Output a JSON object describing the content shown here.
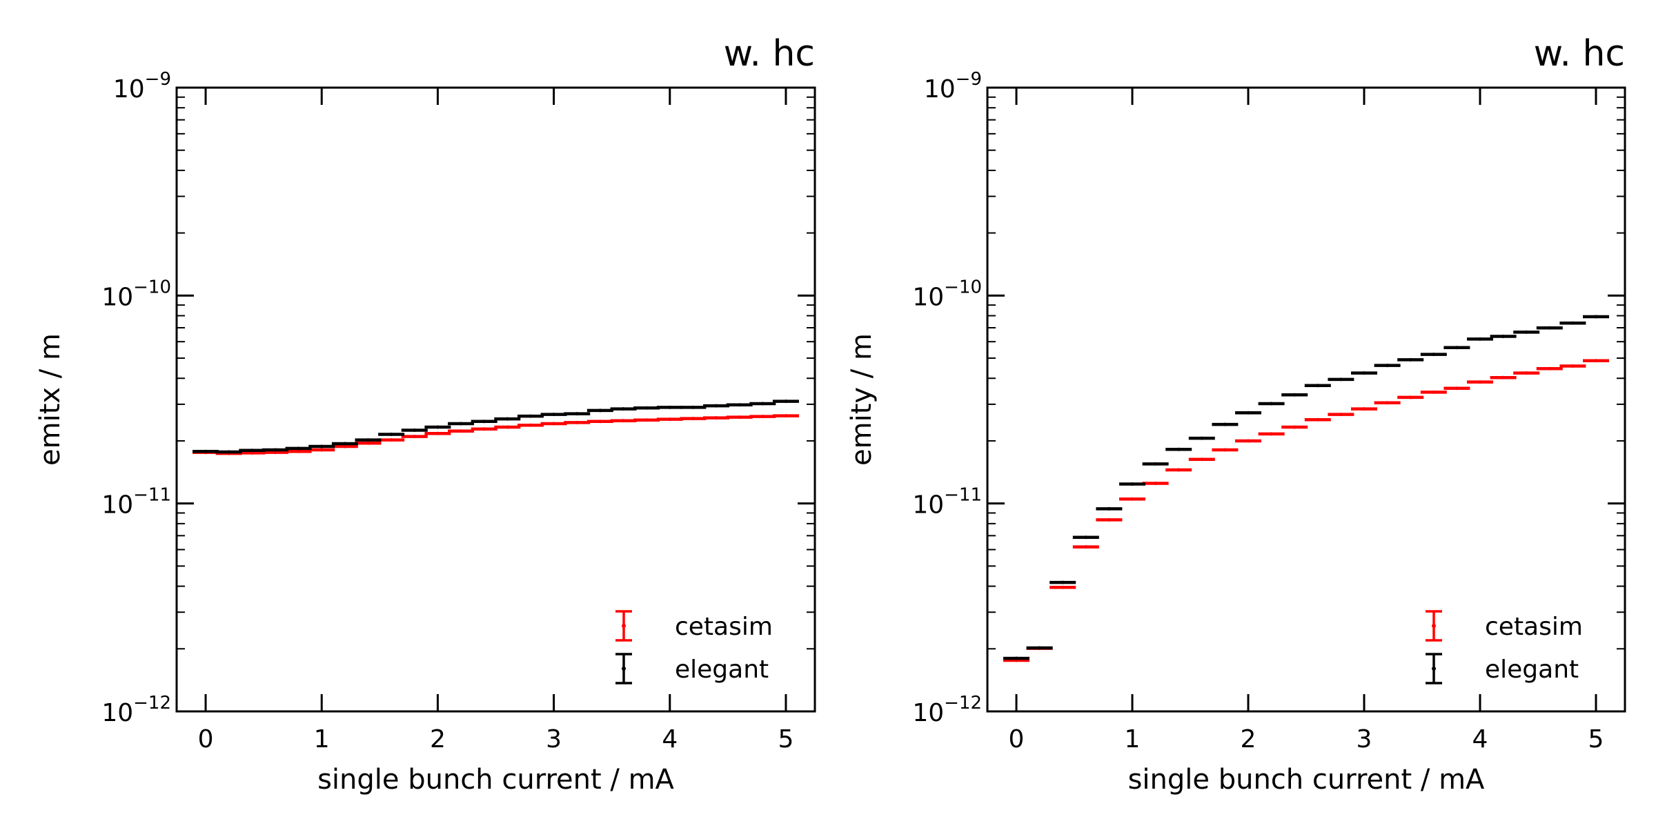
{
  "chart_data": [
    {
      "type": "scatter",
      "title": "w. hc",
      "xlabel": "single bunch current / mA",
      "ylabel": "emitx / m",
      "yscale": "log",
      "xlim": [
        -0.25,
        5.25
      ],
      "ylim": [
        1e-12,
        1e-09
      ],
      "xticks": [
        0,
        1,
        2,
        3,
        4,
        5
      ],
      "xtick_labels": [
        "0",
        "1",
        "2",
        "3",
        "4",
        "5"
      ],
      "yticks": [
        1e-12,
        1e-11,
        1e-10,
        1e-09
      ],
      "ytick_labels": [
        {
          "base": "10",
          "exp": "−12"
        },
        {
          "base": "10",
          "exp": "−11"
        },
        {
          "base": "10",
          "exp": "−10"
        },
        {
          "base": "10",
          "exp": "−9"
        }
      ],
      "legend_position": "lower-right",
      "x": [
        0,
        0.2,
        0.4,
        0.6,
        0.8,
        1.0,
        1.2,
        1.4,
        1.6,
        1.8,
        2.0,
        2.2,
        2.4,
        2.6,
        2.8,
        3.0,
        3.2,
        3.4,
        3.6,
        3.8,
        4.0,
        4.2,
        4.4,
        4.6,
        4.8,
        5.0
      ],
      "series": [
        {
          "name": "cetasim",
          "color": "#ff0000",
          "values": [
            1.76e-11,
            1.74e-11,
            1.75e-11,
            1.76e-11,
            1.78e-11,
            1.81e-11,
            1.88e-11,
            1.95e-11,
            2.02e-11,
            2.1e-11,
            2.17e-11,
            2.23e-11,
            2.28e-11,
            2.33e-11,
            2.38e-11,
            2.42e-11,
            2.45e-11,
            2.48e-11,
            2.5e-11,
            2.52e-11,
            2.54e-11,
            2.56e-11,
            2.58e-11,
            2.6e-11,
            2.62e-11,
            2.64e-11
          ]
        },
        {
          "name": "elegant",
          "color": "#000000",
          "values": [
            1.78e-11,
            1.77e-11,
            1.8e-11,
            1.81e-11,
            1.84e-11,
            1.88e-11,
            1.94e-11,
            2.02e-11,
            2.15e-11,
            2.25e-11,
            2.33e-11,
            2.42e-11,
            2.48e-11,
            2.55e-11,
            2.63e-11,
            2.68e-11,
            2.7e-11,
            2.8e-11,
            2.85e-11,
            2.88e-11,
            2.9e-11,
            2.9e-11,
            2.95e-11,
            2.98e-11,
            3.02e-11,
            3.1e-11
          ]
        }
      ]
    },
    {
      "type": "scatter",
      "title": "w. hc",
      "xlabel": "single bunch current / mA",
      "ylabel": "emity / m",
      "yscale": "log",
      "xlim": [
        -0.25,
        5.25
      ],
      "ylim": [
        1e-12,
        1e-09
      ],
      "xticks": [
        0,
        1,
        2,
        3,
        4,
        5
      ],
      "xtick_labels": [
        "0",
        "1",
        "2",
        "3",
        "4",
        "5"
      ],
      "yticks": [
        1e-12,
        1e-11,
        1e-10,
        1e-09
      ],
      "ytick_labels": [
        {
          "base": "10",
          "exp": "−12"
        },
        {
          "base": "10",
          "exp": "−11"
        },
        {
          "base": "10",
          "exp": "−10"
        },
        {
          "base": "10",
          "exp": "−9"
        }
      ],
      "legend_position": "lower-right",
      "x": [
        0,
        0.2,
        0.4,
        0.6,
        0.8,
        1.0,
        1.2,
        1.4,
        1.6,
        1.8,
        2.0,
        2.2,
        2.4,
        2.6,
        2.8,
        3.0,
        3.2,
        3.4,
        3.6,
        3.8,
        4.0,
        4.2,
        4.4,
        4.6,
        4.8,
        5.0
      ],
      "series": [
        {
          "name": "cetasim",
          "color": "#ff0000",
          "values": [
            1.76e-12,
            2.01e-12,
            3.95e-12,
            6.18e-12,
            8.34e-12,
            1.05e-11,
            1.25e-11,
            1.45e-11,
            1.63e-11,
            1.81e-11,
            2e-11,
            2.16e-11,
            2.33e-11,
            2.53e-11,
            2.68e-11,
            2.85e-11,
            3.05e-11,
            3.24e-11,
            3.43e-11,
            3.58e-11,
            3.84e-11,
            4.03e-11,
            4.24e-11,
            4.45e-11,
            4.58e-11,
            4.86e-11
          ]
        },
        {
          "name": "elegant",
          "color": "#000000",
          "values": [
            1.8e-12,
            2.02e-12,
            4.17e-12,
            6.87e-12,
            9.43e-12,
            1.24e-11,
            1.55e-11,
            1.82e-11,
            2.06e-11,
            2.4e-11,
            2.73e-11,
            3.02e-11,
            3.33e-11,
            3.69e-11,
            3.95e-11,
            4.24e-11,
            4.61e-11,
            4.91e-11,
            5.21e-11,
            5.62e-11,
            6.18e-11,
            6.36e-11,
            6.67e-11,
            6.99e-11,
            7.37e-11,
            7.91e-11
          ]
        }
      ]
    }
  ]
}
